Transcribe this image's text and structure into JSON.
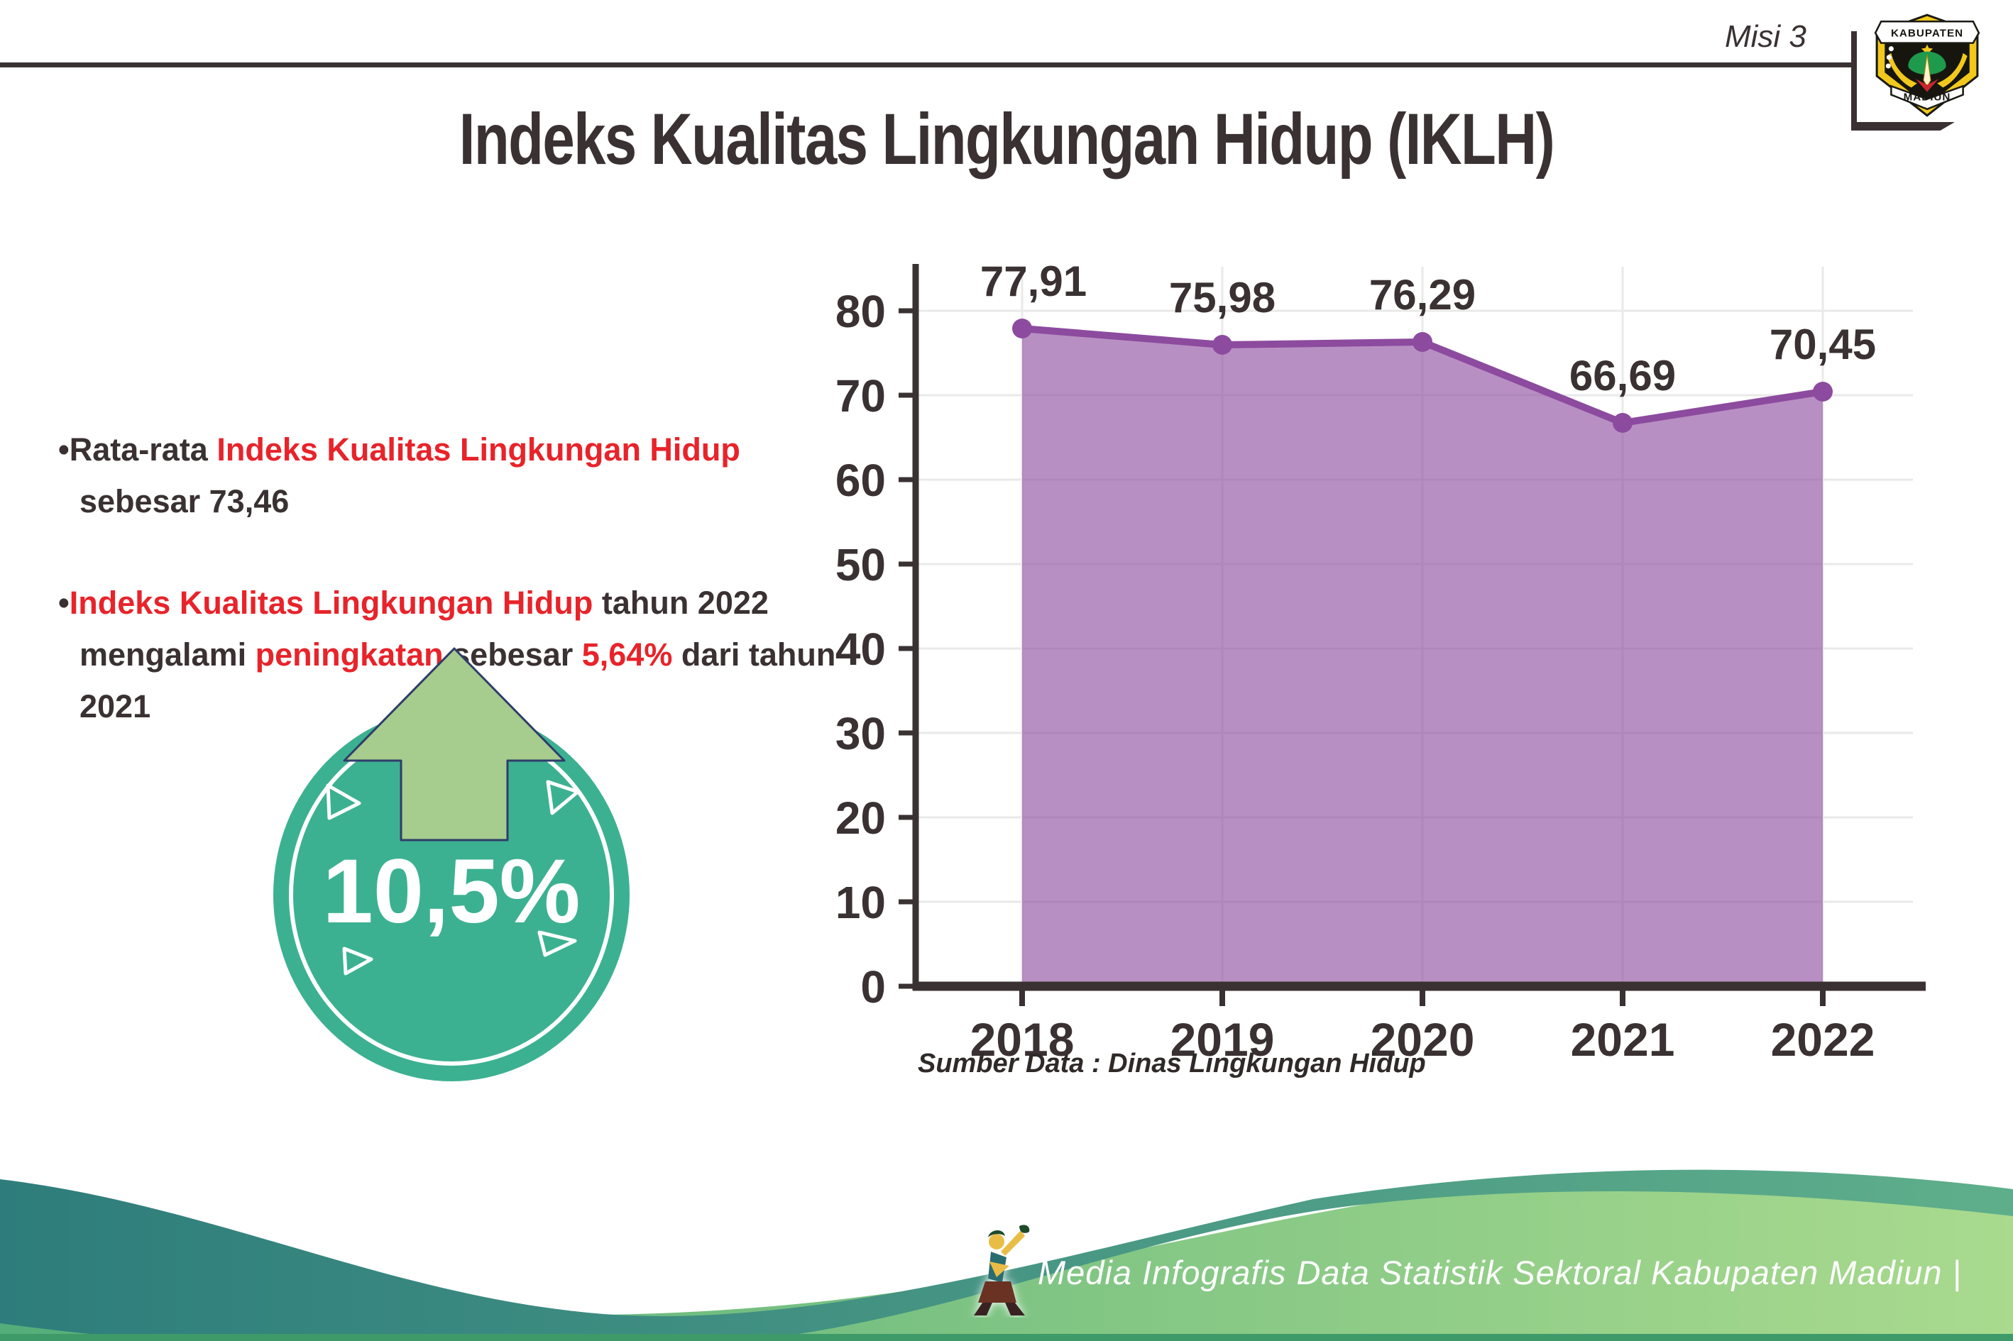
{
  "header": {
    "misi": "Misi 3",
    "title": "Indeks Kualitas Lingkungan Hidup (IKLH)",
    "logo_top": "KABUPATEN",
    "logo_bottom": "MADIUN"
  },
  "bullets": {
    "marker": "•",
    "b1": {
      "s0": "Rata-rata ",
      "s1": "Indeks Kualitas Lingkungan Hidup",
      "s2": " sebesar 73,46"
    },
    "b2": {
      "s0": "Indeks Kualitas Lingkungan Hidup",
      "s1": " tahun 2022 mengalami ",
      "s2": "peningkatan",
      "s3": " sebesar ",
      "s4": "5,64%",
      "s5": " dari tahun 2021"
    }
  },
  "badge": {
    "value": "10,5%"
  },
  "chart_data": {
    "type": "area",
    "title": "Indeks Kualitas Lingkungan Hidup (IKLH) 2018-2022",
    "categories": [
      "2018",
      "2019",
      "2020",
      "2021",
      "2022"
    ],
    "values": [
      77.91,
      75.98,
      76.29,
      66.69,
      70.45
    ],
    "value_labels": [
      "77,91",
      "75,98",
      "76,29",
      "66,69",
      "70,45"
    ],
    "xlabel": "",
    "ylabel": "",
    "ylim": [
      0,
      80
    ],
    "yticks": [
      0,
      10,
      20,
      30,
      40,
      50,
      60,
      70,
      80
    ],
    "grid": true,
    "legend": false,
    "line_color": "#8C4B9E",
    "fill_color": "#B286BE",
    "source": "Sumber Data : Dinas Lingkungan Hidup"
  },
  "footer": {
    "credit": "Media Infografis Data Statistik Sektoral Kabupaten Madiun |"
  },
  "colors": {
    "dark_text": "#3A3132",
    "red_text": "#E8232A",
    "badge_teal": "#3CB191",
    "arrow_green": "#A6CC8E",
    "grid_gray": "#E9E9E9",
    "footer_teal": "#2E7D7C",
    "footer_green": "#A9DA8E"
  }
}
